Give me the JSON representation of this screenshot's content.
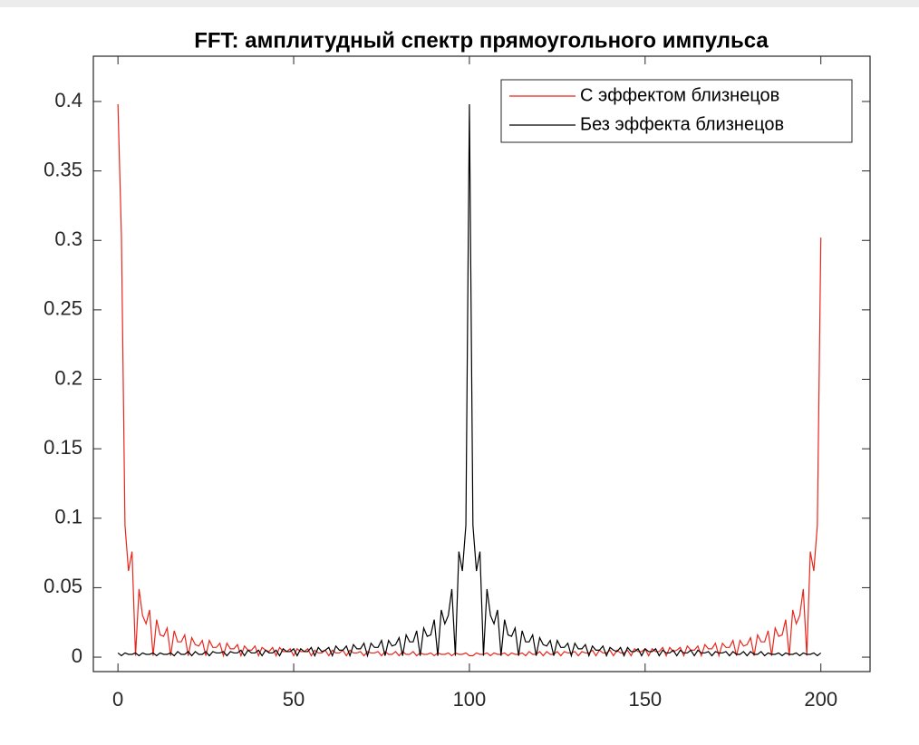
{
  "chart_data": {
    "type": "line",
    "title": "FFT: амплитудный спектр прямоугольного импульса",
    "xlim": [
      -7,
      214
    ],
    "xticks": [
      0,
      50,
      100,
      150,
      200
    ],
    "ylim": [
      -0.0104,
      0.4326
    ],
    "yticks": [
      0,
      0.05,
      0.1,
      0.15,
      0.2,
      0.25,
      0.3,
      0.35,
      0.4
    ],
    "legend": "upper right",
    "x": [
      0,
      1,
      2,
      3,
      4,
      5,
      6,
      7,
      8,
      9,
      10,
      11,
      12,
      13,
      14,
      15,
      16,
      17,
      18,
      19,
      20,
      21,
      22,
      23,
      24,
      25,
      26,
      27,
      28,
      29,
      30,
      31,
      32,
      33,
      34,
      35,
      36,
      37,
      38,
      39,
      40,
      41,
      42,
      43,
      44,
      45,
      46,
      47,
      48,
      49,
      50,
      51,
      52,
      53,
      54,
      55,
      56,
      57,
      58,
      59,
      60,
      61,
      62,
      63,
      64,
      65,
      66,
      67,
      68,
      69,
      70,
      71,
      72,
      73,
      74,
      75,
      76,
      77,
      78,
      79,
      80,
      81,
      82,
      83,
      84,
      85,
      86,
      87,
      88,
      89,
      90,
      91,
      92,
      93,
      94,
      95,
      96,
      97,
      98,
      99,
      100,
      101,
      102,
      103,
      104,
      105,
      106,
      107,
      108,
      109,
      110,
      111,
      112,
      113,
      114,
      115,
      116,
      117,
      118,
      119,
      120,
      121,
      122,
      123,
      124,
      125,
      126,
      127,
      128,
      129,
      130,
      131,
      132,
      133,
      134,
      135,
      136,
      137,
      138,
      139,
      140,
      141,
      142,
      143,
      144,
      145,
      146,
      147,
      148,
      149,
      150,
      151,
      152,
      153,
      154,
      155,
      156,
      157,
      158,
      159,
      160,
      161,
      162,
      163,
      164,
      165,
      166,
      167,
      168,
      169,
      170,
      171,
      172,
      173,
      174,
      175,
      176,
      177,
      178,
      179,
      180,
      181,
      182,
      183,
      184,
      185,
      186,
      187,
      188,
      189,
      190,
      191,
      192,
      193,
      194,
      195,
      196,
      197,
      198,
      199,
      200
    ],
    "series": [
      {
        "name": "С эффектом близнецов",
        "color": "#e8261c",
        "values": [
          0.398,
          0.302,
          0.095,
          0.062,
          0.076,
          0.001,
          0.049,
          0.03,
          0.024,
          0.034,
          0.001,
          0.027,
          0.016,
          0.015,
          0.021,
          0.001,
          0.019,
          0.011,
          0.011,
          0.016,
          0.001,
          0.014,
          0.009,
          0.008,
          0.012,
          0.001,
          0.012,
          0.007,
          0.007,
          0.01,
          0.001,
          0.01,
          0.006,
          0.006,
          0.009,
          0.001,
          0.008,
          0.005,
          0.005,
          0.008,
          0.001,
          0.007,
          0.005,
          0.004,
          0.007,
          0.001,
          0.007,
          0.004,
          0.004,
          0.006,
          0.001,
          0.006,
          0.004,
          0.004,
          0.006,
          0.001,
          0.005,
          0.003,
          0.003,
          0.005,
          0.001,
          0.005,
          0.003,
          0.003,
          0.005,
          0.001,
          0.005,
          0.003,
          0.003,
          0.004,
          0.001,
          0.004,
          0.003,
          0.003,
          0.004,
          0.001,
          0.004,
          0.002,
          0.002,
          0.004,
          0.001,
          0.004,
          0.002,
          0.002,
          0.004,
          0.001,
          0.003,
          0.002,
          0.002,
          0.003,
          0.001,
          0.003,
          0.002,
          0.002,
          0.003,
          0.001,
          0.003,
          0.002,
          0.002,
          0.003,
          0.001,
          0.001,
          0.003,
          0.002,
          0.002,
          0.003,
          0.001,
          0.003,
          0.002,
          0.002,
          0.003,
          0.001,
          0.003,
          0.002,
          0.002,
          0.003,
          0.001,
          0.004,
          0.002,
          0.002,
          0.004,
          0.001,
          0.004,
          0.002,
          0.002,
          0.004,
          0.001,
          0.004,
          0.003,
          0.003,
          0.004,
          0.001,
          0.004,
          0.003,
          0.003,
          0.005,
          0.001,
          0.005,
          0.003,
          0.003,
          0.005,
          0.001,
          0.005,
          0.003,
          0.003,
          0.005,
          0.001,
          0.006,
          0.004,
          0.004,
          0.006,
          0.001,
          0.006,
          0.004,
          0.004,
          0.007,
          0.001,
          0.007,
          0.004,
          0.005,
          0.007,
          0.001,
          0.008,
          0.005,
          0.005,
          0.008,
          0.001,
          0.009,
          0.006,
          0.006,
          0.01,
          0.001,
          0.01,
          0.007,
          0.007,
          0.012,
          0.001,
          0.012,
          0.008,
          0.009,
          0.014,
          0.001,
          0.016,
          0.011,
          0.011,
          0.019,
          0.001,
          0.021,
          0.015,
          0.016,
          0.027,
          0.001,
          0.034,
          0.024,
          0.03,
          0.049,
          0.001,
          0.076,
          0.062,
          0.095,
          0.302
        ]
      },
      {
        "name": "Без эффекта близнецов",
        "color": "#000000",
        "values": [
          0.003,
          0.001,
          0.003,
          0.002,
          0.002,
          0.003,
          0.001,
          0.003,
          0.002,
          0.002,
          0.003,
          0.001,
          0.003,
          0.002,
          0.002,
          0.003,
          0.001,
          0.004,
          0.002,
          0.002,
          0.004,
          0.001,
          0.004,
          0.002,
          0.002,
          0.004,
          0.001,
          0.004,
          0.003,
          0.003,
          0.004,
          0.001,
          0.004,
          0.003,
          0.003,
          0.005,
          0.001,
          0.005,
          0.003,
          0.003,
          0.005,
          0.001,
          0.005,
          0.003,
          0.003,
          0.005,
          0.001,
          0.006,
          0.004,
          0.004,
          0.006,
          0.001,
          0.006,
          0.004,
          0.004,
          0.007,
          0.001,
          0.007,
          0.004,
          0.005,
          0.007,
          0.001,
          0.008,
          0.005,
          0.005,
          0.008,
          0.001,
          0.009,
          0.006,
          0.006,
          0.01,
          0.001,
          0.01,
          0.007,
          0.007,
          0.012,
          0.001,
          0.012,
          0.008,
          0.009,
          0.014,
          0.001,
          0.016,
          0.011,
          0.011,
          0.019,
          0.001,
          0.021,
          0.015,
          0.016,
          0.027,
          0.001,
          0.034,
          0.024,
          0.03,
          0.049,
          0.001,
          0.076,
          0.062,
          0.095,
          0.398,
          0.095,
          0.062,
          0.076,
          0.001,
          0.049,
          0.03,
          0.024,
          0.034,
          0.001,
          0.027,
          0.016,
          0.015,
          0.021,
          0.001,
          0.019,
          0.011,
          0.011,
          0.016,
          0.001,
          0.014,
          0.009,
          0.008,
          0.012,
          0.001,
          0.012,
          0.007,
          0.007,
          0.01,
          0.001,
          0.01,
          0.006,
          0.006,
          0.009,
          0.001,
          0.008,
          0.005,
          0.005,
          0.008,
          0.001,
          0.007,
          0.005,
          0.004,
          0.007,
          0.001,
          0.007,
          0.004,
          0.004,
          0.006,
          0.001,
          0.006,
          0.004,
          0.004,
          0.006,
          0.001,
          0.005,
          0.003,
          0.003,
          0.005,
          0.001,
          0.005,
          0.003,
          0.003,
          0.005,
          0.001,
          0.005,
          0.003,
          0.003,
          0.004,
          0.001,
          0.004,
          0.003,
          0.003,
          0.004,
          0.001,
          0.004,
          0.002,
          0.002,
          0.004,
          0.001,
          0.004,
          0.002,
          0.002,
          0.004,
          0.001,
          0.003,
          0.002,
          0.002,
          0.003,
          0.001,
          0.003,
          0.002,
          0.002,
          0.003,
          0.001,
          0.003,
          0.002,
          0.002,
          0.003,
          0.001,
          0.003
        ]
      }
    ]
  }
}
